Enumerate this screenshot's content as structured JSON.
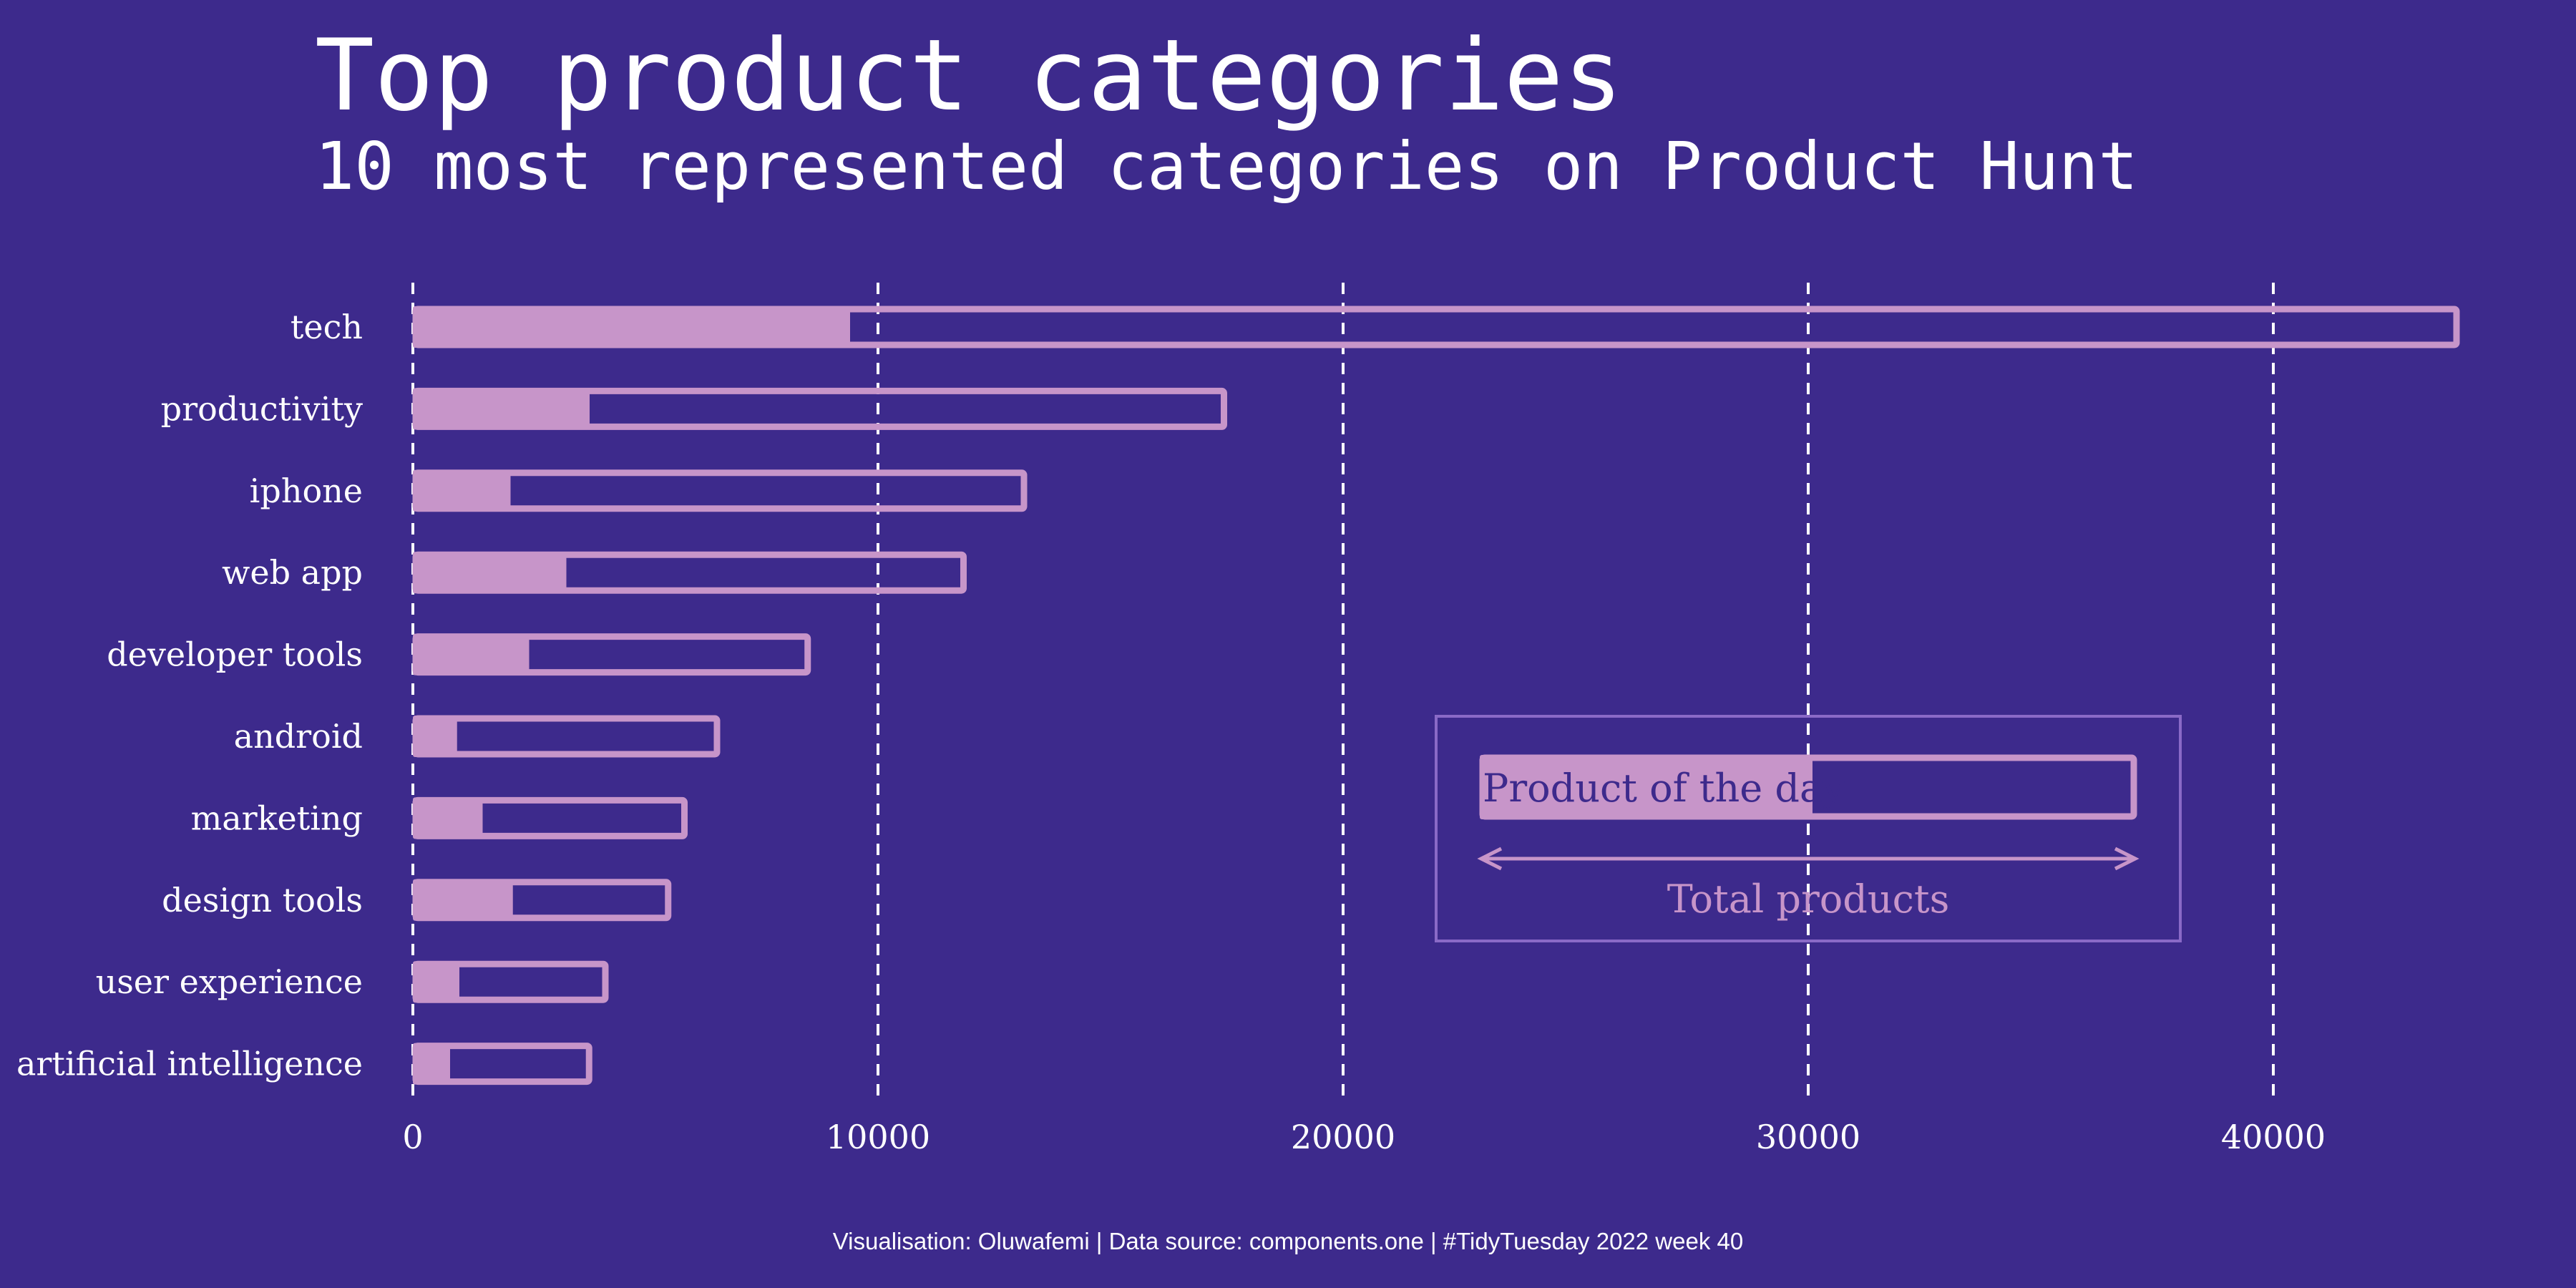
{
  "colors": {
    "background": "#3d2a8c",
    "bar": "#c795c9",
    "text": "#ffffff",
    "legend_border": "#8a6ac7"
  },
  "chart_data": {
    "type": "bar",
    "orientation": "horizontal",
    "title": "Top product categories",
    "subtitle": "10 most represented categories on Product Hunt",
    "categories": [
      "tech",
      "productivity",
      "iphone",
      "web app",
      "developer tools",
      "android",
      "marketing",
      "design tools",
      "user experience",
      "artificial intelligence"
    ],
    "series": [
      {
        "name": "Total products",
        "values": [
          44000,
          17500,
          13200,
          11900,
          8550,
          6600,
          5900,
          5550,
          4200,
          3850
        ],
        "style": "outline"
      },
      {
        "name": "Product of the day",
        "values": [
          9400,
          3800,
          2100,
          3300,
          2500,
          950,
          1500,
          2150,
          1000,
          800
        ],
        "style": "filled"
      }
    ],
    "xlim": [
      0,
      46000
    ],
    "xticks": [
      "0",
      "10000",
      "20000",
      "30000",
      "40000"
    ],
    "grid": "vertical dashed",
    "legend": {
      "filled_label": "Product of the day",
      "outline_label": "Total products",
      "placement": "bottom-right"
    }
  },
  "caption": "Visualisation: Oluwafemi | Data source: components.one | #TidyTuesday 2022 week 40"
}
